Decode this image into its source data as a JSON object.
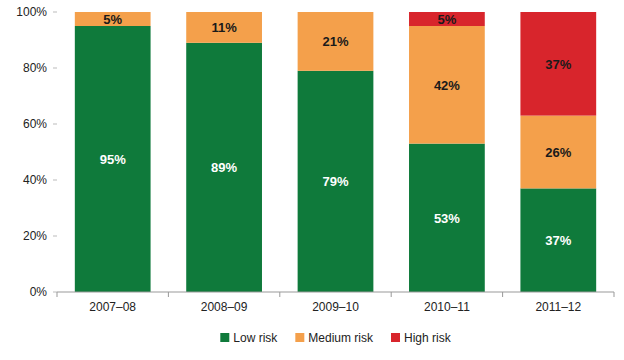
{
  "chart_data": {
    "type": "bar",
    "stacked": true,
    "data_labels": true,
    "grid": false,
    "legend": "bottom",
    "categories": [
      "2007–08",
      "2008–09",
      "2009–10",
      "2010–11",
      "2011–12"
    ],
    "series": [
      {
        "name": "Low risk",
        "color": "#0f7a3b",
        "values": [
          95,
          89,
          79,
          53,
          37
        ],
        "value_labels": [
          "95%",
          "89%",
          "79%",
          "53%",
          "37%"
        ]
      },
      {
        "name": "Medium risk",
        "color": "#f4a04b",
        "values": [
          5,
          11,
          21,
          42,
          26
        ],
        "value_labels": [
          "5%",
          "11%",
          "21%",
          "42%",
          "26%"
        ]
      },
      {
        "name": "High risk",
        "color": "#d8252c",
        "values": [
          null,
          null,
          null,
          5,
          37
        ],
        "value_labels": [
          null,
          null,
          null,
          "5%",
          "37%"
        ]
      }
    ],
    "ylim": [
      0,
      100
    ],
    "yticks": [
      {
        "value": 0,
        "label": "0%"
      },
      {
        "value": 20,
        "label": "20%"
      },
      {
        "value": 40,
        "label": "40%"
      },
      {
        "value": 60,
        "label": "60%"
      },
      {
        "value": 80,
        "label": "80%"
      },
      {
        "value": 100,
        "label": "100%"
      }
    ]
  }
}
